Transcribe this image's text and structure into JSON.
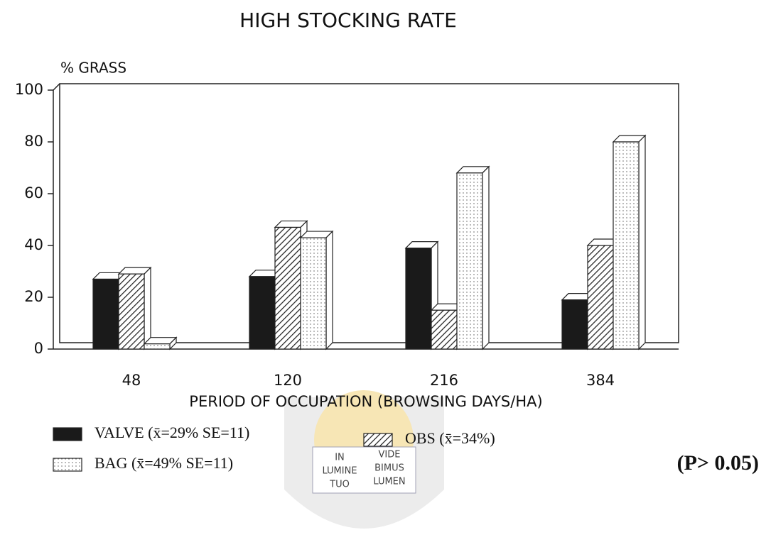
{
  "chart_data": {
    "type": "bar",
    "title": "HIGH STOCKING RATE",
    "y_label": "% GRASS",
    "x_label": "PERIOD OF OCCUPATION (BROWSING DAYS/HA)",
    "categories": [
      "48",
      "120",
      "216",
      "384"
    ],
    "series": [
      {
        "name": "VALVE (x̄=29% SE=11)",
        "color": "#1a1a1a",
        "pattern": "solid",
        "values": [
          27,
          28,
          39,
          19
        ]
      },
      {
        "name": "OBS (x̄=34%)",
        "color": "#222222",
        "pattern": "hatch",
        "values": [
          29,
          47,
          15,
          40
        ]
      },
      {
        "name": "BAG (x̄=49% SE=11)",
        "color": "#555555",
        "pattern": "dots",
        "values": [
          2,
          43,
          68,
          80
        ]
      }
    ],
    "ylim": [
      0,
      100
    ],
    "yticks": [
      0,
      20,
      40,
      60,
      80,
      100
    ],
    "annotation": "(P> 0.05)",
    "watermark": [
      "IN",
      "LUMINE",
      "TUO",
      "VIDE",
      "BIMUS",
      "LUMEN"
    ]
  }
}
